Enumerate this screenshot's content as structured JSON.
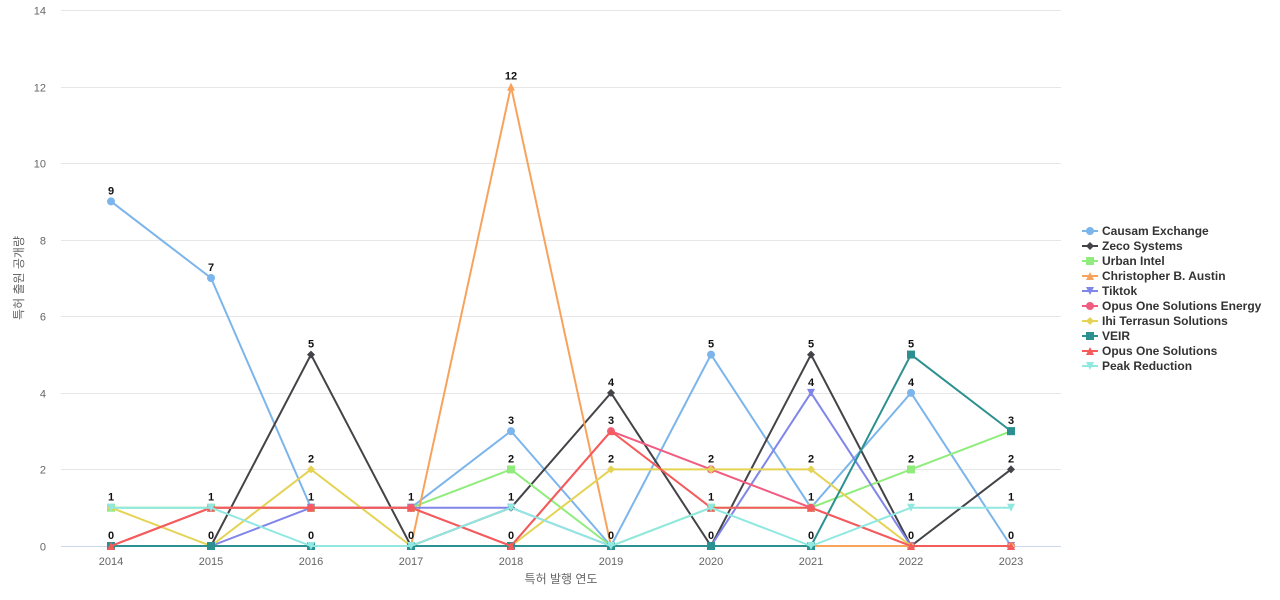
{
  "chart_data": {
    "type": "line",
    "title": "",
    "xlabel": "특허 발행 연도",
    "ylabel": "특허 출원 공개량",
    "x": [
      2014,
      2015,
      2016,
      2017,
      2018,
      2019,
      2020,
      2021,
      2022,
      2023
    ],
    "ylim": [
      0,
      14
    ],
    "yticks": [
      0,
      2,
      4,
      6,
      8,
      10,
      12,
      14
    ],
    "grid": true,
    "legend_position": "right",
    "series": [
      {
        "name": "Causam Exchange",
        "color": "#7cb5ec",
        "marker": "circle",
        "values": [
          9,
          7,
          1,
          1,
          3,
          0,
          5,
          1,
          4,
          0
        ]
      },
      {
        "name": "Zeco Systems",
        "color": "#434348",
        "marker": "diamond",
        "values": [
          0,
          0,
          5,
          0,
          1,
          4,
          0,
          5,
          0,
          2
        ]
      },
      {
        "name": "Urban Intel",
        "color": "#90ed7d",
        "marker": "square",
        "values": [
          1,
          1,
          1,
          1,
          2,
          0,
          1,
          1,
          2,
          3
        ]
      },
      {
        "name": "Christopher B. Austin",
        "color": "#f7a35c",
        "marker": "triangle",
        "values": [
          0,
          0,
          0,
          0,
          12,
          0,
          0,
          0,
          0,
          0
        ]
      },
      {
        "name": "Tiktok",
        "color": "#8085e9",
        "marker": "triangle-down",
        "values": [
          0,
          0,
          1,
          1,
          1,
          0,
          0,
          4,
          0,
          0
        ]
      },
      {
        "name": "Opus One Solutions Energy",
        "color": "#f15c80",
        "marker": "circle",
        "values": [
          0,
          1,
          1,
          1,
          0,
          3,
          2,
          1,
          0,
          0
        ]
      },
      {
        "name": "Ihi Terrasun Solutions",
        "color": "#e4d354",
        "marker": "diamond",
        "values": [
          1,
          0,
          2,
          0,
          0,
          2,
          2,
          2,
          0,
          0
        ]
      },
      {
        "name": "VEIR",
        "color": "#2b908f",
        "marker": "square",
        "values": [
          0,
          0,
          0,
          0,
          0,
          0,
          0,
          0,
          5,
          3
        ]
      },
      {
        "name": "Opus One Solutions",
        "color": "#f45b5b",
        "marker": "triangle",
        "values": [
          0,
          1,
          1,
          1,
          0,
          3,
          1,
          1,
          0,
          0
        ]
      },
      {
        "name": "Peak Reduction",
        "color": "#91e8e1",
        "marker": "triangle-down",
        "values": [
          1,
          1,
          0,
          0,
          1,
          0,
          1,
          0,
          1,
          1
        ]
      }
    ],
    "data_labels": [
      {
        "x": 2014,
        "value": 9,
        "text": "9"
      },
      {
        "x": 2014,
        "value": 1,
        "text": "1"
      },
      {
        "x": 2014,
        "value": 0,
        "text": "0"
      },
      {
        "x": 2015,
        "value": 7,
        "text": "7"
      },
      {
        "x": 2015,
        "value": 1,
        "text": "1"
      },
      {
        "x": 2015,
        "value": 0,
        "text": "0"
      },
      {
        "x": 2016,
        "value": 5,
        "text": "5"
      },
      {
        "x": 2016,
        "value": 2,
        "text": "2"
      },
      {
        "x": 2016,
        "value": 1,
        "text": "1"
      },
      {
        "x": 2016,
        "value": 0,
        "text": "0"
      },
      {
        "x": 2017,
        "value": 1,
        "text": "1"
      },
      {
        "x": 2017,
        "value": 0,
        "text": "0"
      },
      {
        "x": 2018,
        "value": 12,
        "text": "12"
      },
      {
        "x": 2018,
        "value": 3,
        "text": "3"
      },
      {
        "x": 2018,
        "value": 2,
        "text": "2"
      },
      {
        "x": 2018,
        "value": 1,
        "text": "1"
      },
      {
        "x": 2018,
        "value": 0,
        "text": "0"
      },
      {
        "x": 2019,
        "value": 4,
        "text": "4"
      },
      {
        "x": 2019,
        "value": 3,
        "text": "3"
      },
      {
        "x": 2019,
        "value": 2,
        "text": "2"
      },
      {
        "x": 2019,
        "value": 0,
        "text": "0"
      },
      {
        "x": 2020,
        "value": 5,
        "text": "5"
      },
      {
        "x": 2020,
        "value": 2,
        "text": "2"
      },
      {
        "x": 2020,
        "value": 1,
        "text": "1"
      },
      {
        "x": 2020,
        "value": 0,
        "text": "0"
      },
      {
        "x": 2021,
        "value": 5,
        "text": "5"
      },
      {
        "x": 2021,
        "value": 4,
        "text": "4"
      },
      {
        "x": 2021,
        "value": 2,
        "text": "2"
      },
      {
        "x": 2021,
        "value": 1,
        "text": "1"
      },
      {
        "x": 2021,
        "value": 0,
        "text": "0"
      },
      {
        "x": 2022,
        "value": 5,
        "text": "5"
      },
      {
        "x": 2022,
        "value": 4,
        "text": "4"
      },
      {
        "x": 2022,
        "value": 2,
        "text": "2"
      },
      {
        "x": 2022,
        "value": 1,
        "text": "1"
      },
      {
        "x": 2022,
        "value": 0,
        "text": "0"
      },
      {
        "x": 2023,
        "value": 3,
        "text": "3"
      },
      {
        "x": 2023,
        "value": 2,
        "text": "2"
      },
      {
        "x": 2023,
        "value": 1,
        "text": "1"
      },
      {
        "x": 2023,
        "value": 0,
        "text": "0"
      }
    ]
  }
}
